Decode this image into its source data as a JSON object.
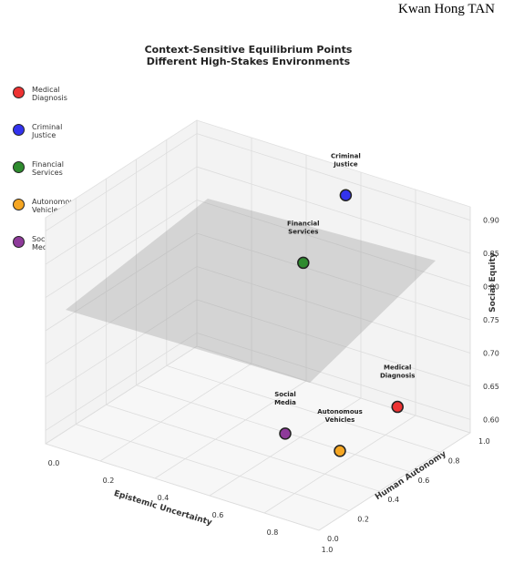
{
  "author": "Kwan Hong TAN",
  "chart_data": {
    "type": "scatter",
    "title": "Context-Sensitive Equilibrium Points\nDifferent High-Stakes Environments",
    "xlabel": "Epistemic Uncertainty",
    "ylabel": "Human Autonomy",
    "zlabel": "Social Equity",
    "x_ticks": [
      "0.0",
      "0.2",
      "0.4",
      "0.6",
      "0.8",
      "1.0"
    ],
    "y_ticks": [
      "0.0",
      "0.2",
      "0.4",
      "0.6",
      "0.8",
      "1.0"
    ],
    "z_ticks": [
      "0.60",
      "0.65",
      "0.70",
      "0.75",
      "0.80",
      "0.85",
      "0.90"
    ],
    "grid": true,
    "legend_position": "top-left",
    "plane": "semi-transparent gray plane",
    "points": [
      {
        "name": "Medical\nDiagnosis",
        "x": 0.9,
        "y": 0.7,
        "z": 0.65,
        "color": "#ee3333"
      },
      {
        "name": "Criminal\nJustice",
        "x": 0.6,
        "y": 0.9,
        "z": 0.9,
        "color": "#3333ee"
      },
      {
        "name": "Financial\nServices",
        "x": 0.5,
        "y": 0.8,
        "z": 0.8,
        "color": "#2e8b2e"
      },
      {
        "name": "Autonomous\nVehicles",
        "x": 0.8,
        "y": 0.5,
        "z": 0.6,
        "color": "#f5a623"
      },
      {
        "name": "Social\nMedia",
        "x": 0.6,
        "y": 0.5,
        "z": 0.6,
        "color": "#8e3a9a"
      }
    ]
  }
}
